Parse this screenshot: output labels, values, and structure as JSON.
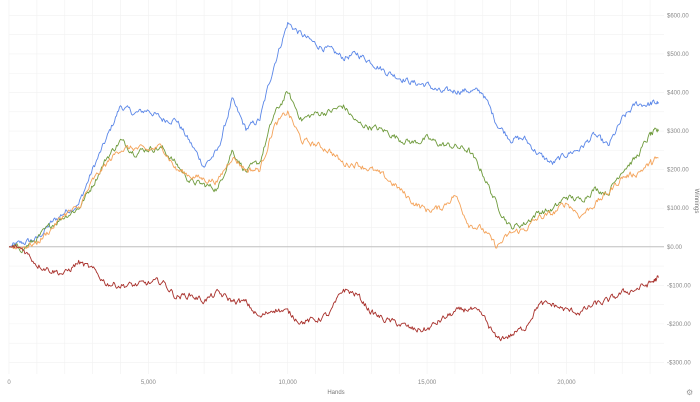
{
  "chart_data": {
    "type": "line",
    "xlabel": "Hands",
    "ylabel": "Winnings",
    "x_ticks": [
      {
        "value": 0,
        "label": "0"
      },
      {
        "value": 5000,
        "label": "5,000"
      },
      {
        "value": 10000,
        "label": "10,000"
      },
      {
        "value": 15000,
        "label": "15,000"
      },
      {
        "value": 20000,
        "label": "20,000"
      }
    ],
    "y_ticks": [
      {
        "value": 600,
        "label": "$600.00"
      },
      {
        "value": 500,
        "label": "$500.00"
      },
      {
        "value": 400,
        "label": "$400.00"
      },
      {
        "value": 300,
        "label": "$300.00"
      },
      {
        "value": 200,
        "label": "$200.00"
      },
      {
        "value": 100,
        "label": "$100.00"
      },
      {
        "value": 0,
        "label": "$0.00"
      },
      {
        "value": -100,
        "label": "-$100.00"
      },
      {
        "value": -200,
        "label": "-$200.00"
      },
      {
        "value": -300,
        "label": "-$300.00"
      }
    ],
    "xlim": [
      0,
      23500
    ],
    "ylim": [
      -330,
      640
    ],
    "grid": true,
    "legend": "none",
    "series": [
      {
        "color": "#5b87e8",
        "points": [
          [
            0,
            0
          ],
          [
            500,
            10
          ],
          [
            1000,
            20
          ],
          [
            1500,
            60
          ],
          [
            2000,
            90
          ],
          [
            2500,
            110
          ],
          [
            3000,
            200
          ],
          [
            3500,
            280
          ],
          [
            4000,
            365
          ],
          [
            4500,
            345
          ],
          [
            5000,
            355
          ],
          [
            5500,
            330
          ],
          [
            6000,
            330
          ],
          [
            6500,
            270
          ],
          [
            7000,
            210
          ],
          [
            7500,
            250
          ],
          [
            8000,
            380
          ],
          [
            8500,
            305
          ],
          [
            9000,
            330
          ],
          [
            9500,
            470
          ],
          [
            10000,
            580
          ],
          [
            10500,
            550
          ],
          [
            11000,
            525
          ],
          [
            11500,
            510
          ],
          [
            12000,
            490
          ],
          [
            12500,
            500
          ],
          [
            13000,
            480
          ],
          [
            13500,
            455
          ],
          [
            14000,
            440
          ],
          [
            14500,
            425
          ],
          [
            15000,
            420
          ],
          [
            15500,
            400
          ],
          [
            16000,
            405
          ],
          [
            16500,
            405
          ],
          [
            17000,
            400
          ],
          [
            17500,
            320
          ],
          [
            18000,
            280
          ],
          [
            18500,
            280
          ],
          [
            19000,
            240
          ],
          [
            19500,
            215
          ],
          [
            20000,
            240
          ],
          [
            20500,
            255
          ],
          [
            21000,
            290
          ],
          [
            21500,
            260
          ],
          [
            22000,
            330
          ],
          [
            22500,
            370
          ],
          [
            23000,
            370
          ],
          [
            23300,
            375
          ]
        ]
      },
      {
        "color": "#6f9b3d",
        "points": [
          [
            0,
            0
          ],
          [
            500,
            -5
          ],
          [
            1000,
            20
          ],
          [
            1500,
            55
          ],
          [
            2000,
            80
          ],
          [
            2500,
            100
          ],
          [
            3000,
            160
          ],
          [
            3500,
            230
          ],
          [
            4000,
            275
          ],
          [
            4500,
            245
          ],
          [
            5000,
            255
          ],
          [
            5500,
            255
          ],
          [
            6000,
            215
          ],
          [
            6500,
            170
          ],
          [
            7000,
            160
          ],
          [
            7500,
            150
          ],
          [
            8000,
            250
          ],
          [
            8500,
            195
          ],
          [
            9000,
            220
          ],
          [
            9500,
            340
          ],
          [
            10000,
            400
          ],
          [
            10500,
            330
          ],
          [
            11000,
            345
          ],
          [
            11500,
            350
          ],
          [
            12000,
            365
          ],
          [
            12500,
            320
          ],
          [
            13000,
            310
          ],
          [
            13500,
            300
          ],
          [
            14000,
            280
          ],
          [
            14500,
            270
          ],
          [
            15000,
            280
          ],
          [
            15500,
            265
          ],
          [
            16000,
            260
          ],
          [
            16500,
            250
          ],
          [
            17000,
            190
          ],
          [
            17500,
            110
          ],
          [
            18000,
            50
          ],
          [
            18500,
            60
          ],
          [
            19000,
            90
          ],
          [
            19500,
            95
          ],
          [
            20000,
            130
          ],
          [
            20500,
            120
          ],
          [
            21000,
            150
          ],
          [
            21500,
            140
          ],
          [
            22000,
            200
          ],
          [
            22500,
            230
          ],
          [
            23000,
            290
          ],
          [
            23300,
            300
          ]
        ]
      },
      {
        "color": "#f4a35a",
        "points": [
          [
            0,
            0
          ],
          [
            500,
            0
          ],
          [
            1000,
            10
          ],
          [
            1500,
            45
          ],
          [
            2000,
            85
          ],
          [
            2500,
            100
          ],
          [
            3000,
            170
          ],
          [
            3500,
            215
          ],
          [
            4000,
            255
          ],
          [
            4500,
            255
          ],
          [
            5000,
            250
          ],
          [
            5500,
            260
          ],
          [
            6000,
            200
          ],
          [
            6500,
            185
          ],
          [
            7000,
            175
          ],
          [
            7500,
            170
          ],
          [
            8000,
            235
          ],
          [
            8500,
            200
          ],
          [
            9000,
            200
          ],
          [
            9500,
            310
          ],
          [
            10000,
            350
          ],
          [
            10500,
            275
          ],
          [
            11000,
            265
          ],
          [
            11500,
            250
          ],
          [
            12000,
            215
          ],
          [
            12500,
            215
          ],
          [
            13000,
            200
          ],
          [
            13500,
            180
          ],
          [
            14000,
            150
          ],
          [
            14500,
            115
          ],
          [
            15000,
            95
          ],
          [
            15500,
            100
          ],
          [
            16000,
            135
          ],
          [
            16500,
            60
          ],
          [
            17000,
            45
          ],
          [
            17500,
            0
          ],
          [
            18000,
            35
          ],
          [
            18500,
            45
          ],
          [
            19000,
            75
          ],
          [
            19500,
            85
          ],
          [
            20000,
            115
          ],
          [
            20500,
            80
          ],
          [
            21000,
            110
          ],
          [
            21500,
            140
          ],
          [
            22000,
            180
          ],
          [
            22500,
            190
          ],
          [
            23000,
            215
          ],
          [
            23300,
            230
          ]
        ]
      },
      {
        "color": "#a8302b",
        "points": [
          [
            0,
            0
          ],
          [
            500,
            -5
          ],
          [
            1000,
            -45
          ],
          [
            1500,
            -60
          ],
          [
            2000,
            -70
          ],
          [
            2500,
            -40
          ],
          [
            3000,
            -60
          ],
          [
            3500,
            -95
          ],
          [
            4000,
            -100
          ],
          [
            4500,
            -100
          ],
          [
            5000,
            -95
          ],
          [
            5500,
            -90
          ],
          [
            6000,
            -130
          ],
          [
            6500,
            -125
          ],
          [
            7000,
            -140
          ],
          [
            7500,
            -120
          ],
          [
            8000,
            -140
          ],
          [
            8500,
            -145
          ],
          [
            9000,
            -185
          ],
          [
            9500,
            -160
          ],
          [
            10000,
            -170
          ],
          [
            10500,
            -195
          ],
          [
            11000,
            -190
          ],
          [
            11500,
            -175
          ],
          [
            12000,
            -110
          ],
          [
            12500,
            -125
          ],
          [
            13000,
            -170
          ],
          [
            13500,
            -190
          ],
          [
            14000,
            -200
          ],
          [
            14500,
            -215
          ],
          [
            15000,
            -215
          ],
          [
            15500,
            -190
          ],
          [
            16000,
            -170
          ],
          [
            16500,
            -160
          ],
          [
            17000,
            -180
          ],
          [
            17500,
            -240
          ],
          [
            18000,
            -230
          ],
          [
            18500,
            -210
          ],
          [
            19000,
            -150
          ],
          [
            19500,
            -150
          ],
          [
            20000,
            -165
          ],
          [
            20500,
            -170
          ],
          [
            21000,
            -150
          ],
          [
            21500,
            -140
          ],
          [
            22000,
            -120
          ],
          [
            22500,
            -110
          ],
          [
            23000,
            -95
          ],
          [
            23300,
            -80
          ]
        ]
      }
    ]
  },
  "icons": {
    "settings": "gear-icon"
  },
  "colors": {
    "zero_line": "#bfbfbf",
    "grid": "#f1f1f1"
  }
}
